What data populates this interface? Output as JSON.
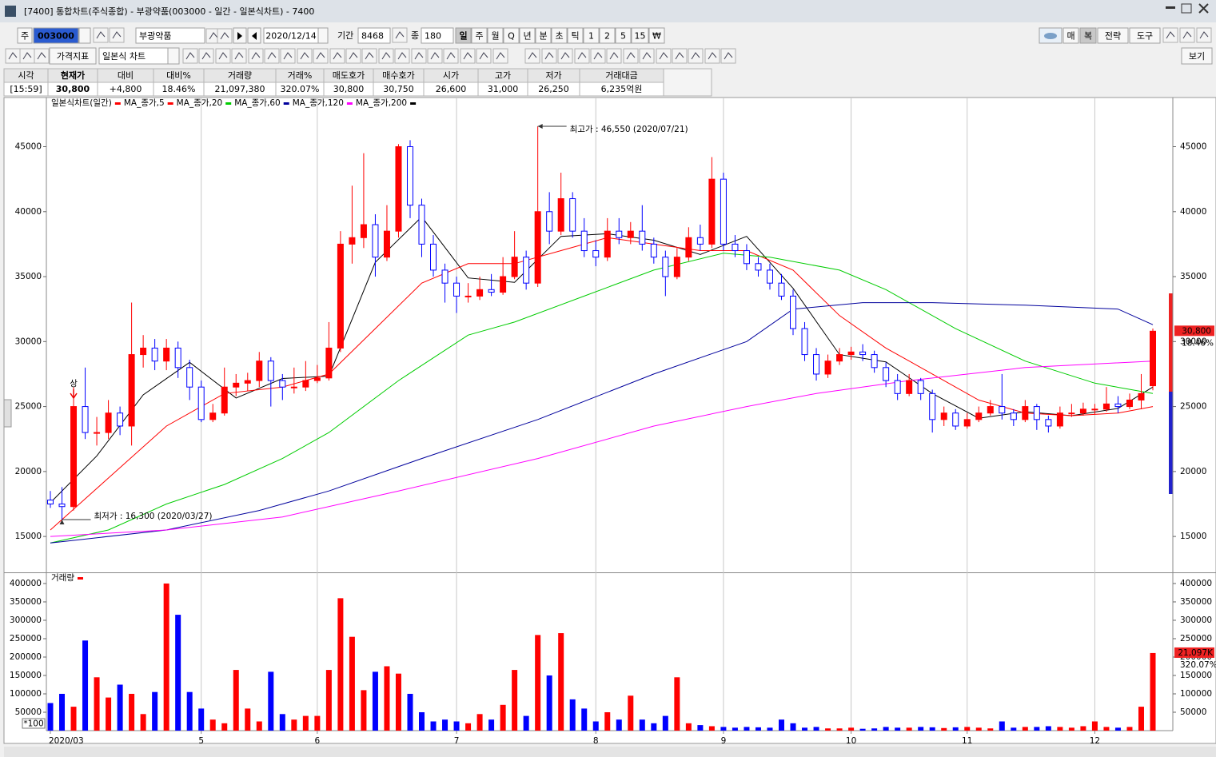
{
  "window": {
    "title": "[7400] 통합차트(주식종합) - 부광약품(003000 - 일간 - 일본식차트) - 7400"
  },
  "toolbar": {
    "market": "주",
    "code": "003000",
    "name": "부광약품",
    "date": "2020/12/14",
    "period_label": "기간",
    "period": "8468",
    "count_label": "종",
    "count": "180",
    "intervals": [
      "일",
      "주",
      "월",
      "Q",
      "년",
      "분",
      "초",
      "틱",
      "1",
      "2",
      "5",
      "15",
      "₩"
    ],
    "right_buttons": [
      "매",
      "복",
      "전략",
      "도구"
    ],
    "indicator": "가격지표",
    "chart_style": "일본식 차트",
    "view": "보기"
  },
  "quote": {
    "headers": [
      "시각",
      "현재가",
      "대비",
      "대비%",
      "거래량",
      "거래%",
      "매도호가",
      "매수호가",
      "시가",
      "고가",
      "저가",
      "거래대금"
    ],
    "values": [
      "[15:59]",
      "30,800",
      "+4,800",
      "18.46%",
      "21,097,380",
      "320.07%",
      "30,800",
      "30,750",
      "26,600",
      "31,000",
      "26,250",
      "6,235억원"
    ],
    "value_colors": [
      "#000000",
      "#ff0000",
      "#ff0000",
      "#ff0000",
      "#000000",
      "#ff0000",
      "#000000",
      "#000000",
      "#ff0000",
      "#ff0000",
      "#ff0000",
      "#000000"
    ]
  },
  "chart": {
    "type": "candlestick",
    "title": "일본식차트(일간)",
    "up_color": "#ff0000",
    "down_color": "#0000ff",
    "open": [
      17800,
      17500,
      17300,
      25000,
      23000,
      23000,
      24500,
      23500,
      29000,
      29500,
      28500,
      29500,
      28000,
      26500,
      24000,
      24500,
      26500,
      26800,
      27000,
      28500,
      27000,
      26500,
      26500,
      27000,
      27200,
      29500,
      37500,
      38000,
      39000,
      36500,
      38500,
      45000,
      40500,
      37500,
      35500,
      34500,
      33500,
      33500,
      34000,
      33800,
      35000,
      36500,
      34500,
      40000,
      38500,
      41000,
      38500,
      37000,
      36500,
      38500,
      38000,
      38500,
      37500,
      36500,
      35000,
      36500,
      38000,
      37500,
      42500,
      37500,
      37000,
      36000,
      35500,
      34500,
      33500,
      31000,
      29000,
      27500,
      28500,
      29000,
      29200,
      29000,
      28000,
      27000,
      26000,
      27000,
      26000,
      24000,
      24500,
      23500,
      24000,
      24500,
      25000,
      24500,
      24000,
      25000,
      24000,
      23500,
      24500,
      24500,
      24800,
      24800,
      25200,
      25000,
      25500,
      26600
    ],
    "high": [
      18500,
      18800,
      26500,
      28000,
      24200,
      25500,
      25000,
      33000,
      30500,
      30200,
      30200,
      30000,
      28600,
      27000,
      25200,
      28000,
      27500,
      27600,
      29200,
      28800,
      27500,
      28000,
      28500,
      28200,
      31500,
      38500,
      42000,
      44500,
      39800,
      40500,
      45200,
      45500,
      41000,
      38200,
      36000,
      35000,
      34500,
      35000,
      35200,
      36500,
      38500,
      37000,
      46550,
      41500,
      43000,
      41500,
      39500,
      37800,
      39500,
      39500,
      39200,
      40500,
      38000,
      37000,
      37200,
      38800,
      39000,
      44200,
      43000,
      38200,
      37500,
      36500,
      36000,
      35200,
      34000,
      31500,
      29500,
      29000,
      29500,
      29600,
      29800,
      29300,
      28400,
      27500,
      27500,
      27200,
      26300,
      25000,
      24800,
      24500,
      25000,
      25500,
      27500,
      24800,
      25500,
      25200,
      24300,
      25000,
      25200,
      25300,
      25200,
      26500,
      25800,
      26000,
      27500,
      31000
    ],
    "low": [
      17200,
      16300,
      17000,
      22500,
      22000,
      22500,
      22800,
      22000,
      28000,
      27800,
      27800,
      27200,
      25500,
      23800,
      23800,
      24300,
      25800,
      26200,
      26500,
      25000,
      25500,
      26000,
      26200,
      26800,
      27000,
      29200,
      36000,
      37200,
      35000,
      36200,
      38000,
      39500,
      36500,
      35000,
      33000,
      32200,
      33000,
      33200,
      33500,
      33600,
      34800,
      34000,
      34200,
      37500,
      38200,
      38000,
      36500,
      35800,
      36200,
      37500,
      37500,
      37000,
      36000,
      33500,
      34800,
      36200,
      37000,
      37200,
      37000,
      36500,
      35500,
      35000,
      34000,
      33200,
      30500,
      28500,
      27000,
      27200,
      28200,
      28600,
      28500,
      27600,
      26500,
      25500,
      25800,
      25500,
      23000,
      23500,
      23200,
      23300,
      23800,
      24300,
      24000,
      23500,
      23800,
      23200,
      23000,
      23300,
      24200,
      24300,
      24400,
      24600,
      24500,
      24800,
      24800,
      26250
    ],
    "close": [
      17500,
      17300,
      25000,
      23000,
      23000,
      24500,
      23500,
      29000,
      29500,
      28500,
      29500,
      28000,
      26500,
      24000,
      24500,
      26500,
      26800,
      27000,
      28500,
      27000,
      26500,
      26500,
      27000,
      27200,
      29500,
      37500,
      38000,
      39000,
      36500,
      38500,
      45000,
      40500,
      37500,
      35500,
      34500,
      33500,
      33500,
      34000,
      33800,
      35000,
      36500,
      34500,
      40000,
      38500,
      41000,
      38500,
      37000,
      36500,
      38500,
      38000,
      38500,
      37500,
      36500,
      35000,
      36500,
      38000,
      37500,
      42500,
      37500,
      37000,
      36000,
      35500,
      34500,
      33500,
      31000,
      29000,
      27500,
      28500,
      29000,
      29200,
      29000,
      28000,
      27000,
      26000,
      27000,
      26000,
      24000,
      24500,
      23500,
      24000,
      24500,
      25000,
      24500,
      24000,
      25000,
      24000,
      23500,
      24500,
      24500,
      24800,
      24800,
      25200,
      25000,
      25500,
      26000,
      30800
    ],
    "ylim": [
      12300,
      48600
    ],
    "yticks": [
      15000,
      20000,
      25000,
      30000,
      35000,
      40000,
      45000
    ],
    "xticks": [
      {
        "value": 0,
        "label": "2020/03"
      },
      {
        "value": 13,
        "label": "5"
      },
      {
        "value": 23,
        "label": "6"
      },
      {
        "value": 35,
        "label": "7"
      },
      {
        "value": 47,
        "label": "8"
      },
      {
        "value": 58,
        "label": "9"
      },
      {
        "value": 69,
        "label": "10"
      },
      {
        "value": 79,
        "label": "11"
      },
      {
        "value": 90,
        "label": "12"
      }
    ],
    "moving_averages": [
      {
        "name": "MA_종가,5",
        "color": "#000000",
        "x": [
          0,
          4,
          8,
          12,
          16,
          20,
          24,
          28,
          32,
          36,
          40,
          44,
          48,
          52,
          56,
          60,
          64,
          68,
          72,
          76,
          80,
          84,
          88,
          92,
          95
        ],
        "values": [
          17600,
          21200,
          25900,
          28400,
          25660,
          27160,
          27340,
          36100,
          39600,
          34900,
          34560,
          38100,
          38300,
          37800,
          36700,
          38100,
          34100,
          29000,
          28440,
          26000,
          24100,
          24600,
          24300,
          24860,
          26500
        ]
      },
      {
        "name": "MA_종가,20",
        "color": "#ff0000",
        "x": [
          0,
          5,
          10,
          15,
          20,
          24,
          28,
          32,
          36,
          40,
          44,
          48,
          52,
          56,
          60,
          64,
          68,
          72,
          76,
          80,
          84,
          88,
          92,
          95
        ],
        "values": [
          15500,
          19500,
          23500,
          26000,
          26500,
          27500,
          31000,
          34500,
          36000,
          36000,
          37000,
          38000,
          37500,
          37000,
          37000,
          35500,
          32000,
          29500,
          27500,
          25500,
          24500,
          24300,
          24500,
          25000
        ]
      },
      {
        "name": "MA_종가,60",
        "color": "#00cc00",
        "x": [
          0,
          5,
          10,
          15,
          20,
          24,
          30,
          36,
          40,
          46,
          52,
          58,
          62,
          68,
          72,
          78,
          84,
          90,
          95
        ],
        "values": [
          14500,
          15500,
          17500,
          19000,
          21000,
          23000,
          27000,
          30500,
          31500,
          33500,
          35500,
          36800,
          36500,
          35500,
          34000,
          31000,
          28500,
          26800,
          26000
        ]
      },
      {
        "name": "MA_종가,120",
        "color": "#00009c",
        "x": [
          0,
          10,
          18,
          24,
          32,
          42,
          52,
          60,
          64,
          70,
          76,
          84,
          92,
          95
        ],
        "values": [
          14500,
          15500,
          17000,
          18500,
          21000,
          24000,
          27500,
          30000,
          32500,
          33000,
          33000,
          32800,
          32500,
          31300
        ]
      },
      {
        "name": "MA_종가,200",
        "color": "#ff00ff",
        "x": [
          0,
          10,
          20,
          30,
          42,
          52,
          60,
          66,
          74,
          84,
          95
        ],
        "values": [
          15000,
          15500,
          16500,
          18500,
          21000,
          23500,
          25000,
          26000,
          27000,
          28000,
          28500
        ]
      }
    ],
    "high_annotation": "최고가 : 46,550 (2020/07/21)",
    "low_annotation": "최저가 : 16,300 (2020/03/27)",
    "limit_up_marker": "상",
    "last_price_label": "30,800",
    "last_change_label": "18.46%",
    "volume": {
      "title": "거래량",
      "color": "#ff0000",
      "values": [
        75000,
        100000,
        65000,
        245000,
        145000,
        90000,
        125000,
        100000,
        45000,
        105000,
        400000,
        315000,
        105000,
        60000,
        30000,
        20000,
        165000,
        60000,
        25000,
        160000,
        45000,
        30000,
        40000,
        40000,
        165000,
        360000,
        255000,
        110000,
        160000,
        175000,
        155000,
        100000,
        50000,
        25000,
        30000,
        25000,
        20000,
        45000,
        30000,
        70000,
        165000,
        40000,
        260000,
        150000,
        265000,
        85000,
        60000,
        25000,
        50000,
        30000,
        95000,
        30000,
        20000,
        40000,
        145000,
        20000,
        15000,
        12000,
        10000,
        8000,
        10000,
        9000,
        8000,
        30000,
        20000,
        8000,
        10000,
        6000,
        6000,
        8000,
        5000,
        6000,
        10000,
        8000,
        8000,
        10000,
        9000,
        7000,
        9000,
        10000,
        8000,
        6000,
        25000,
        8000,
        10000,
        10000,
        12000,
        10000,
        8000,
        12000,
        25000,
        10000,
        8000,
        10000,
        65000,
        210974
      ],
      "ylim": [
        0,
        426000
      ],
      "yticks": [
        50000,
        100000,
        150000,
        200000,
        250000,
        300000,
        350000,
        400000
      ],
      "unit": "*100",
      "last_label": "21,097K",
      "last_ratio_label": "320.07%"
    }
  }
}
